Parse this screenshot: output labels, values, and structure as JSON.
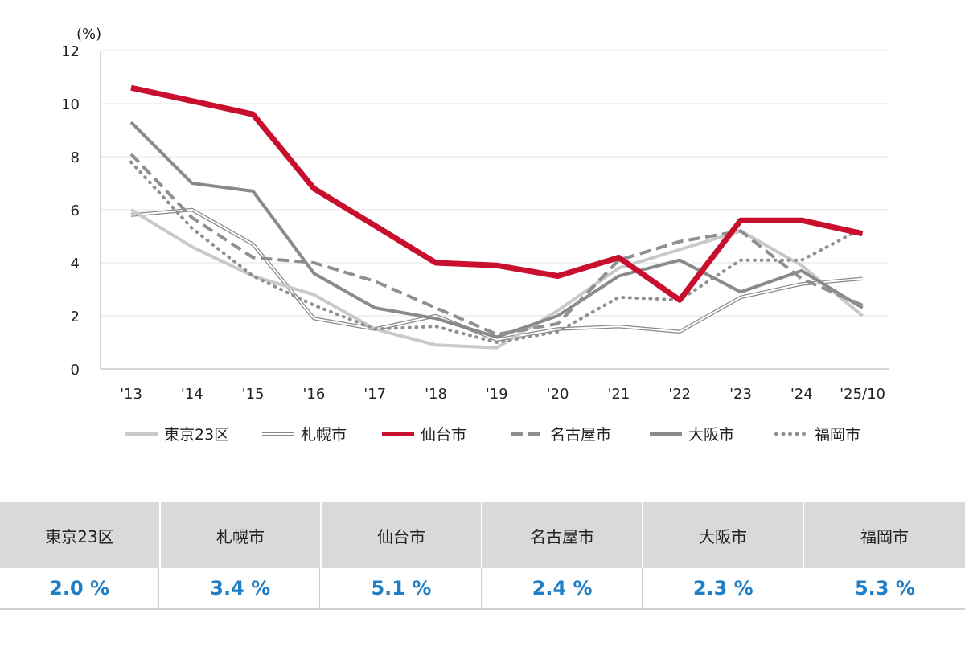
{
  "chart_data": {
    "type": "line",
    "ylabel": "(%)",
    "ylim": [
      0,
      12
    ],
    "yticks": [
      "0",
      "2",
      "4",
      "6",
      "8",
      "10",
      "12"
    ],
    "categories": [
      "'13",
      "'14",
      "'15",
      "'16",
      "'17",
      "'18",
      "'19",
      "'20",
      "'21",
      "'22",
      "'23",
      "'24",
      "'25/10"
    ],
    "grid": true,
    "legend_position": "bottom",
    "series": [
      {
        "name": "東京23区",
        "color": "#c9c9c9",
        "style": "solid",
        "width": 4,
        "values": [
          6.0,
          4.6,
          3.5,
          2.8,
          1.5,
          0.9,
          0.8,
          2.2,
          3.8,
          4.5,
          5.2,
          3.9,
          2.0
        ]
      },
      {
        "name": "札幌市",
        "color": "#8a8a8a",
        "style": "double",
        "width": 1.2,
        "values": [
          5.8,
          6.0,
          4.7,
          1.9,
          1.5,
          2.0,
          1.1,
          1.5,
          1.6,
          1.4,
          2.7,
          3.2,
          3.4
        ]
      },
      {
        "name": "仙台市",
        "color": "#c8102e",
        "style": "solid",
        "width": 7,
        "values": [
          10.6,
          10.1,
          9.6,
          6.8,
          5.4,
          4.0,
          3.9,
          3.5,
          4.2,
          2.6,
          5.6,
          5.6,
          5.1
        ]
      },
      {
        "name": "名古屋市",
        "color": "#8f8f8f",
        "style": "dash",
        "width": 4,
        "values": [
          8.1,
          5.7,
          4.2,
          4.0,
          3.3,
          2.3,
          1.3,
          1.7,
          4.1,
          4.8,
          5.2,
          3.4,
          2.4
        ]
      },
      {
        "name": "大阪市",
        "color": "#8a8a8a",
        "style": "solid",
        "width": 4,
        "values": [
          9.3,
          7.0,
          6.7,
          3.6,
          2.3,
          1.9,
          1.2,
          2.0,
          3.5,
          4.1,
          2.9,
          3.7,
          2.3
        ]
      },
      {
        "name": "福岡市",
        "color": "#8f8f8f",
        "style": "dot",
        "width": 4,
        "values": [
          7.8,
          5.3,
          3.5,
          2.4,
          1.5,
          1.6,
          1.0,
          1.4,
          2.7,
          2.6,
          4.1,
          4.1,
          5.3
        ]
      }
    ]
  },
  "table": {
    "headers": [
      "東京23区",
      "札幌市",
      "仙台市",
      "名古屋市",
      "大阪市",
      "福岡市"
    ],
    "values": [
      "2.0 %",
      "3.4 %",
      "5.1 %",
      "2.4 %",
      "2.3 %",
      "5.3 %"
    ],
    "value_color": "#1f7fc6"
  }
}
